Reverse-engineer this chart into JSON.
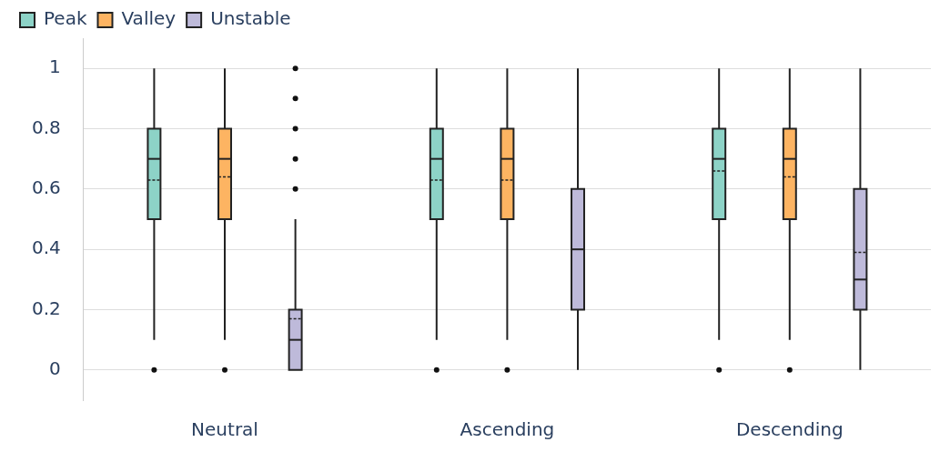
{
  "chart_data": {
    "type": "box",
    "categories": [
      "Neutral",
      "Ascending",
      "Descending"
    ],
    "series": [
      {
        "name": "Peak",
        "color": "#8dd3c7",
        "boxes": [
          {
            "low": 0.1,
            "q1": 0.5,
            "median": 0.7,
            "q3": 0.8,
            "high": 1,
            "mean": 0.63,
            "outliers": [
              0
            ]
          },
          {
            "low": 0.1,
            "q1": 0.5,
            "median": 0.7,
            "q3": 0.8,
            "high": 1,
            "mean": 0.63,
            "outliers": [
              0
            ]
          },
          {
            "low": 0.1,
            "q1": 0.5,
            "median": 0.7,
            "q3": 0.8,
            "high": 1,
            "mean": 0.66,
            "outliers": [
              0
            ]
          }
        ]
      },
      {
        "name": "Valley",
        "color": "#fdb462",
        "boxes": [
          {
            "low": 0.1,
            "q1": 0.5,
            "median": 0.7,
            "q3": 0.8,
            "high": 1,
            "mean": 0.64,
            "outliers": [
              0
            ]
          },
          {
            "low": 0.1,
            "q1": 0.5,
            "median": 0.7,
            "q3": 0.8,
            "high": 1,
            "mean": 0.63,
            "outliers": [
              0
            ]
          },
          {
            "low": 0.1,
            "q1": 0.5,
            "median": 0.7,
            "q3": 0.8,
            "high": 1,
            "mean": 0.64,
            "outliers": [
              0
            ]
          }
        ]
      },
      {
        "name": "Unstable",
        "color": "#bebada",
        "boxes": [
          {
            "low": 0,
            "q1": 0,
            "median": 0.1,
            "q3": 0.2,
            "high": 0.5,
            "mean": 0.17,
            "outliers": [
              0.6,
              0.7,
              0.8,
              0.9,
              1
            ]
          },
          {
            "low": 0,
            "q1": 0.2,
            "median": 0.4,
            "q3": 0.6,
            "high": 1
          },
          {
            "low": 0,
            "q1": 0.2,
            "median": 0.3,
            "q3": 0.6,
            "high": 1,
            "mean": 0.39
          }
        ]
      }
    ],
    "ylim": [
      -0.1,
      1.1
    ],
    "yticks": [
      0,
      0.2,
      0.4,
      0.6,
      0.8,
      1
    ],
    "grid": "y",
    "legend": "top left"
  }
}
